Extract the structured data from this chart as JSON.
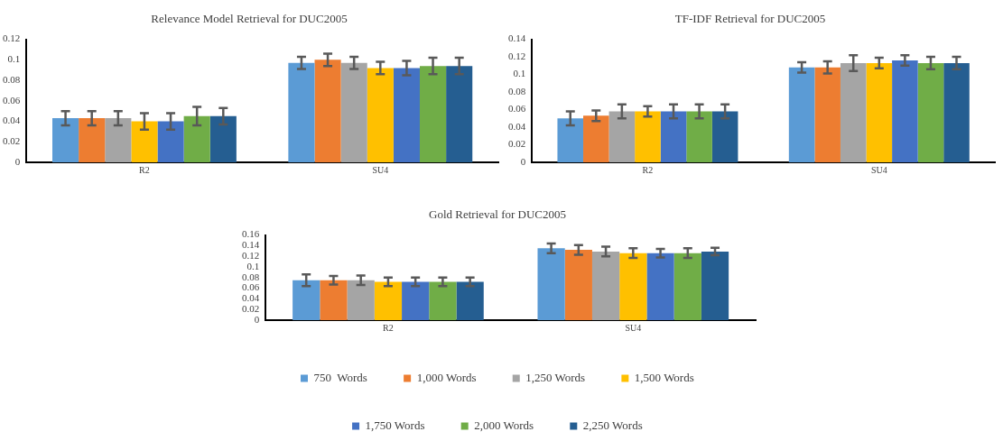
{
  "chart_data": [
    {
      "type": "bar",
      "title": "Relevance Model Retrieval for DUC2005",
      "categories": [
        "R2",
        "SU4"
      ],
      "ylim": [
        0,
        0.12
      ],
      "yticks": [
        0,
        0.02,
        0.04,
        0.06,
        0.08,
        0.1,
        0.12
      ],
      "grid": false,
      "legend": false,
      "series": [
        {
          "color": "#5b9bd5",
          "values": [
            0.043,
            0.097
          ],
          "errors": [
            0.007,
            0.006
          ]
        },
        {
          "color": "#ed7d31",
          "values": [
            0.043,
            0.1
          ],
          "errors": [
            0.007,
            0.006
          ]
        },
        {
          "color": "#a5a5a5",
          "values": [
            0.043,
            0.097
          ],
          "errors": [
            0.007,
            0.006
          ]
        },
        {
          "color": "#ffc000",
          "values": [
            0.04,
            0.092
          ],
          "errors": [
            0.008,
            0.006
          ]
        },
        {
          "color": "#4472c4",
          "values": [
            0.04,
            0.092
          ],
          "errors": [
            0.008,
            0.007
          ]
        },
        {
          "color": "#70ad47",
          "values": [
            0.045,
            0.094
          ],
          "errors": [
            0.009,
            0.008
          ]
        },
        {
          "color": "#255e91",
          "values": [
            0.045,
            0.094
          ],
          "errors": [
            0.008,
            0.008
          ]
        }
      ]
    },
    {
      "type": "bar",
      "title": "TF-IDF Retrieval for DUC2005",
      "categories": [
        "R2",
        "SU4"
      ],
      "ylim": [
        0,
        0.14
      ],
      "yticks": [
        0,
        0.02,
        0.04,
        0.06,
        0.08,
        0.1,
        0.12,
        0.14
      ],
      "grid": false,
      "legend": false,
      "series": [
        {
          "color": "#5b9bd5",
          "values": [
            0.05,
            0.108
          ],
          "errors": [
            0.008,
            0.006
          ]
        },
        {
          "color": "#ed7d31",
          "values": [
            0.053,
            0.108
          ],
          "errors": [
            0.006,
            0.007
          ]
        },
        {
          "color": "#a5a5a5",
          "values": [
            0.058,
            0.113
          ],
          "errors": [
            0.008,
            0.009
          ]
        },
        {
          "color": "#ffc000",
          "values": [
            0.058,
            0.113
          ],
          "errors": [
            0.006,
            0.006
          ]
        },
        {
          "color": "#4472c4",
          "values": [
            0.058,
            0.116
          ],
          "errors": [
            0.008,
            0.006
          ]
        },
        {
          "color": "#70ad47",
          "values": [
            0.058,
            0.113
          ],
          "errors": [
            0.008,
            0.007
          ]
        },
        {
          "color": "#255e91",
          "values": [
            0.058,
            0.113
          ],
          "errors": [
            0.008,
            0.007
          ]
        }
      ]
    },
    {
      "type": "bar",
      "title": "Gold Retrieval for DUC2005",
      "categories": [
        "R2",
        "SU4"
      ],
      "ylim": [
        0,
        0.16
      ],
      "yticks": [
        0,
        0.02,
        0.04,
        0.06,
        0.08,
        0.1,
        0.12,
        0.14,
        0.16
      ],
      "grid": false,
      "legend": "bottom",
      "series": [
        {
          "name": "750  Words",
          "color": "#5b9bd5",
          "values": [
            0.075,
            0.135
          ],
          "errors": [
            0.011,
            0.009
          ]
        },
        {
          "name": "1,000 Words",
          "color": "#ed7d31",
          "values": [
            0.075,
            0.132
          ],
          "errors": [
            0.008,
            0.009
          ]
        },
        {
          "name": "1,250 Words",
          "color": "#a5a5a5",
          "values": [
            0.075,
            0.129
          ],
          "errors": [
            0.009,
            0.009
          ]
        },
        {
          "name": "1,500 Words",
          "color": "#ffc000",
          "values": [
            0.072,
            0.126
          ],
          "errors": [
            0.008,
            0.009
          ]
        },
        {
          "name": "1,750 Words",
          "color": "#4472c4",
          "values": [
            0.072,
            0.126
          ],
          "errors": [
            0.008,
            0.008
          ]
        },
        {
          "name": "2,000 Words",
          "color": "#70ad47",
          "values": [
            0.072,
            0.126
          ],
          "errors": [
            0.008,
            0.009
          ]
        },
        {
          "name": "2,250 Words",
          "color": "#255e91",
          "values": [
            0.072,
            0.129
          ],
          "errors": [
            0.008,
            0.007
          ]
        }
      ]
    }
  ]
}
